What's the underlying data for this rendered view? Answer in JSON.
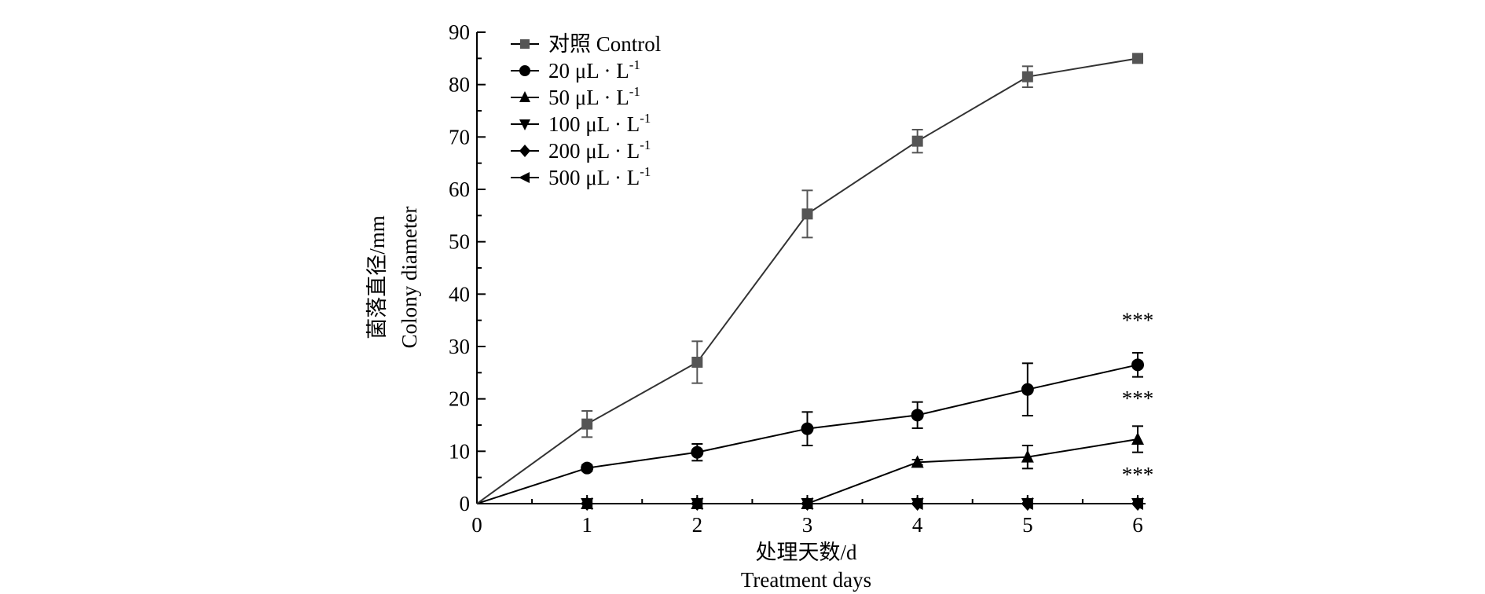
{
  "chart_data": {
    "type": "line",
    "xlabel": [
      "处理天数/d",
      "Treatment days"
    ],
    "ylabel": [
      "菌落直径/mm",
      "Colony diameter"
    ],
    "xlim": [
      0,
      6
    ],
    "ylim": [
      0,
      90
    ],
    "xticks": [
      0,
      1,
      2,
      3,
      4,
      5,
      6
    ],
    "yticks": [
      0,
      10,
      20,
      30,
      40,
      50,
      60,
      70,
      80,
      90
    ],
    "x": [
      0,
      1,
      2,
      3,
      4,
      5,
      6
    ],
    "legend_position": "top-left",
    "grid": false,
    "series": [
      {
        "name": "对照 Control",
        "marker": "square",
        "color": "#555555",
        "values": [
          0,
          15.2,
          27,
          55.3,
          69.2,
          81.5,
          85
        ],
        "errors": [
          0,
          2.5,
          4,
          4.5,
          2.2,
          2,
          0.5
        ]
      },
      {
        "name": "20 μL · L-1",
        "name_base": "20  μL · L",
        "name_sup": "-1",
        "marker": "circle",
        "color": "#000000",
        "values": [
          0,
          6.8,
          9.8,
          14.3,
          16.9,
          21.8,
          26.5
        ],
        "errors": [
          0,
          0.6,
          1.6,
          3.2,
          2.5,
          5,
          2.3
        ]
      },
      {
        "name": "50 μL · L-1",
        "name_base": "50  μL · L",
        "name_sup": "-1",
        "marker": "triangle-up",
        "color": "#000000",
        "values": [
          0,
          0,
          0,
          0,
          7.9,
          8.9,
          12.3
        ],
        "errors": [
          0,
          0,
          0,
          0,
          0.5,
          2.2,
          2.5
        ]
      },
      {
        "name": "100 μL · L-1",
        "name_base": "100  μL · L",
        "name_sup": "-1",
        "marker": "triangle-down",
        "color": "#000000",
        "values": [
          0,
          0,
          0,
          0,
          0,
          0,
          0
        ],
        "errors": [
          0,
          0,
          0,
          0,
          0,
          0,
          0
        ]
      },
      {
        "name": "200 μL · L-1",
        "name_base": "200  μL · L",
        "name_sup": "-1",
        "marker": "diamond",
        "color": "#000000",
        "values": [
          0,
          0,
          0,
          0,
          0,
          0,
          0
        ],
        "errors": [
          0,
          0,
          0,
          0,
          0,
          0,
          0
        ]
      },
      {
        "name": "500 μL · L-1",
        "name_base": "500  μL · L",
        "name_sup": "-1",
        "marker": "triangle-left",
        "color": "#000000",
        "values": [
          0,
          0,
          0,
          0,
          0,
          0,
          0
        ],
        "errors": [
          0,
          0,
          0,
          0,
          0,
          0,
          0
        ]
      }
    ],
    "annotations": [
      {
        "text": "***",
        "x": 6,
        "y": 26.5,
        "series": "20 μL · L-1"
      },
      {
        "text": "***",
        "x": 6,
        "y": 12.3,
        "series": "50 μL · L-1"
      },
      {
        "text": "***",
        "x": 6,
        "y": 0,
        "series": "500 μL · L-1"
      }
    ]
  }
}
